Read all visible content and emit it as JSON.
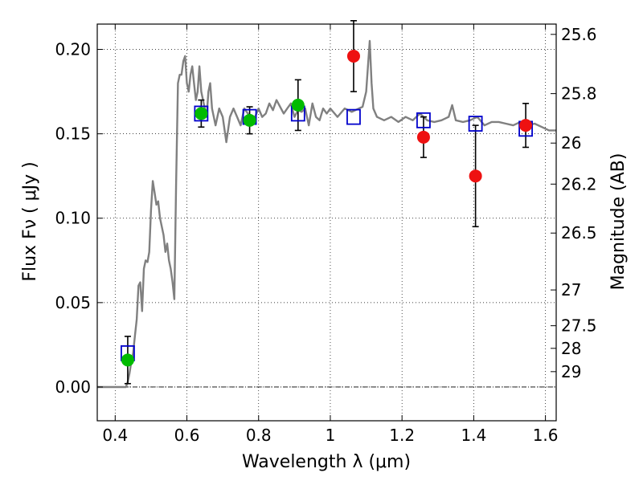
{
  "chart_data": {
    "type": "scatter",
    "xlabel": "Wavelength  λ (μm)",
    "ylabel": "Flux  Fν  ( μJy )",
    "y2label": "Magnitude (AB)",
    "xlim": [
      0.35,
      1.63
    ],
    "ylim": [
      -0.02,
      0.215
    ],
    "xticks": [
      0.4,
      0.6,
      0.8,
      1.0,
      1.2,
      1.4,
      1.6
    ],
    "xtick_labels": [
      "0.4",
      "0.6",
      "0.8",
      "1",
      "1.2",
      "1.4",
      "1.6"
    ],
    "yticks": [
      0.0,
      0.05,
      0.1,
      0.15,
      0.2
    ],
    "ytick_labels": [
      "0.00",
      "0.05",
      "0.10",
      "0.15",
      "0.20"
    ],
    "y2ticks": [
      {
        "label": "25.6",
        "flux": 0.2089
      },
      {
        "label": "25.8",
        "flux": 0.1738
      },
      {
        "label": "26",
        "flux": 0.1445
      },
      {
        "label": "26.2",
        "flux": 0.1202
      },
      {
        "label": "26.5",
        "flux": 0.0912
      },
      {
        "label": "27",
        "flux": 0.0575
      },
      {
        "label": "27.5",
        "flux": 0.0363
      },
      {
        "label": "28",
        "flux": 0.0229
      },
      {
        "label": "29",
        "flux": 0.0091
      }
    ],
    "grid": true,
    "colors": {
      "model": "#808080",
      "model_phot": "#0000cc",
      "phot_green": "#00bb00",
      "phot_red": "#ee1111",
      "errorbar": "#000000"
    },
    "series": [
      {
        "kind": "line",
        "x": [
          0.35,
          0.43,
          0.435,
          0.44,
          0.445,
          0.45,
          0.455,
          0.46,
          0.465,
          0.47,
          0.475,
          0.48,
          0.485,
          0.49,
          0.495,
          0.5,
          0.505,
          0.51,
          0.515,
          0.52,
          0.525,
          0.53,
          0.535,
          0.54,
          0.545,
          0.55,
          0.555,
          0.56,
          0.565,
          0.57,
          0.575,
          0.58,
          0.585,
          0.59,
          0.595,
          0.6,
          0.605,
          0.61,
          0.615,
          0.62,
          0.625,
          0.63,
          0.635,
          0.64,
          0.645,
          0.65,
          0.655,
          0.66,
          0.665,
          0.67,
          0.675,
          0.68,
          0.69,
          0.7,
          0.71,
          0.72,
          0.73,
          0.74,
          0.75,
          0.76,
          0.77,
          0.78,
          0.79,
          0.8,
          0.81,
          0.82,
          0.83,
          0.84,
          0.85,
          0.86,
          0.87,
          0.88,
          0.89,
          0.9,
          0.91,
          0.92,
          0.93,
          0.94,
          0.95,
          0.96,
          0.97,
          0.98,
          0.99,
          1.0,
          1.02,
          1.04,
          1.06,
          1.08,
          1.09,
          1.1,
          1.105,
          1.11,
          1.115,
          1.12,
          1.13,
          1.15,
          1.17,
          1.19,
          1.21,
          1.23,
          1.25,
          1.27,
          1.29,
          1.31,
          1.33,
          1.34,
          1.35,
          1.37,
          1.39,
          1.41,
          1.43,
          1.45,
          1.47,
          1.49,
          1.51,
          1.53,
          1.55,
          1.57,
          1.59,
          1.61,
          1.63
        ],
        "y": [
          0.0,
          0.0,
          0.003,
          0.008,
          0.015,
          0.02,
          0.03,
          0.04,
          0.06,
          0.062,
          0.045,
          0.07,
          0.075,
          0.074,
          0.08,
          0.105,
          0.122,
          0.115,
          0.108,
          0.11,
          0.1,
          0.095,
          0.09,
          0.08,
          0.085,
          0.075,
          0.07,
          0.062,
          0.052,
          0.12,
          0.18,
          0.185,
          0.185,
          0.193,
          0.196,
          0.18,
          0.175,
          0.185,
          0.19,
          0.18,
          0.17,
          0.175,
          0.19,
          0.175,
          0.17,
          0.165,
          0.16,
          0.175,
          0.18,
          0.165,
          0.16,
          0.155,
          0.165,
          0.16,
          0.145,
          0.16,
          0.165,
          0.16,
          0.155,
          0.165,
          0.162,
          0.158,
          0.16,
          0.165,
          0.16,
          0.162,
          0.168,
          0.164,
          0.17,
          0.166,
          0.162,
          0.165,
          0.168,
          0.16,
          0.164,
          0.163,
          0.165,
          0.155,
          0.168,
          0.16,
          0.158,
          0.165,
          0.162,
          0.165,
          0.16,
          0.165,
          0.163,
          0.165,
          0.166,
          0.175,
          0.19,
          0.205,
          0.18,
          0.165,
          0.16,
          0.158,
          0.16,
          0.157,
          0.16,
          0.158,
          0.162,
          0.158,
          0.157,
          0.158,
          0.16,
          0.167,
          0.158,
          0.157,
          0.158,
          0.16,
          0.155,
          0.157,
          0.157,
          0.156,
          0.155,
          0.157,
          0.155,
          0.156,
          0.154,
          0.152,
          0.152
        ]
      },
      {
        "kind": "model_phot",
        "x": [
          0.435,
          0.64,
          0.775,
          0.91,
          1.065,
          1.26,
          1.405,
          1.545
        ],
        "y": [
          0.02,
          0.162,
          0.16,
          0.162,
          0.16,
          0.158,
          0.156,
          0.153
        ]
      },
      {
        "kind": "observed",
        "x": [
          0.435,
          0.64,
          0.775,
          0.91,
          1.065,
          1.26,
          1.405,
          1.545
        ],
        "y": [
          0.016,
          0.162,
          0.158,
          0.167,
          0.196,
          0.148,
          0.125,
          0.155
        ],
        "yerr": [
          0.014,
          0.008,
          0.008,
          0.015,
          0.021,
          0.012,
          0.03,
          0.013
        ],
        "color": [
          "green",
          "green",
          "green",
          "green",
          "red",
          "red",
          "red",
          "red"
        ]
      }
    ]
  }
}
